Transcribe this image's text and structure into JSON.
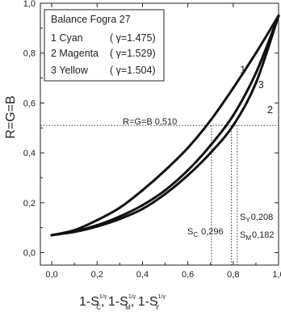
{
  "chart_data": {
    "type": "line",
    "xlabel": "1-S",
    "xlabel_parts": {
      "base": "1-S",
      "exp": "1/γ",
      "sub_c": "C",
      "sub_m": "M",
      "sub_y": "Y",
      "sep": ", "
    },
    "ylabel": "R=G=B",
    "xlim": [
      -0.05,
      1.0
    ],
    "ylim": [
      -0.05,
      1.0
    ],
    "x_ticks": [
      "0,0",
      "0,2",
      "0,4",
      "0,6",
      "0,8",
      "1,0"
    ],
    "y_ticks": [
      "0,0",
      "0,2",
      "0,4",
      "0,6",
      "0,8",
      "1,0"
    ],
    "x_tick_values": [
      0.0,
      0.2,
      0.4,
      0.6,
      0.8,
      1.0
    ],
    "y_tick_values": [
      0.0,
      0.2,
      0.4,
      0.6,
      0.8,
      1.0
    ],
    "legend": {
      "title": "Balance Fogra 27",
      "entries": [
        {
          "label": "1 Cyan",
          "gamma": "( γ=1.475)"
        },
        {
          "label": "2 Magenta",
          "gamma": "( γ=1.529)"
        },
        {
          "label": "3 Yellow",
          "gamma": "( γ=1.504)"
        }
      ],
      "placement": "top-left"
    },
    "series": [
      {
        "curve_label": "1",
        "x": [
          0.0,
          0.1,
          0.2,
          0.3,
          0.4,
          0.5,
          0.6,
          0.7,
          0.8,
          0.9,
          1.0
        ],
        "values": [
          0.07,
          0.09,
          0.13,
          0.18,
          0.25,
          0.33,
          0.42,
          0.53,
          0.66,
          0.8,
          0.95
        ]
      },
      {
        "curve_label": "3",
        "x": [
          0.0,
          0.1,
          0.2,
          0.3,
          0.4,
          0.5,
          0.6,
          0.7,
          0.8,
          0.9,
          1.0
        ],
        "values": [
          0.07,
          0.085,
          0.11,
          0.145,
          0.19,
          0.25,
          0.33,
          0.43,
          0.55,
          0.72,
          0.95
        ]
      },
      {
        "curve_label": "2",
        "x": [
          0.0,
          0.1,
          0.2,
          0.3,
          0.4,
          0.5,
          0.6,
          0.7,
          0.8,
          0.9,
          1.0
        ],
        "values": [
          0.07,
          0.083,
          0.105,
          0.135,
          0.175,
          0.235,
          0.31,
          0.4,
          0.51,
          0.68,
          0.95
        ]
      }
    ],
    "reference_line": {
      "label": "R=G=B 0,510",
      "y": 0.51
    },
    "markers": [
      {
        "id": "C",
        "x": 0.704,
        "value_text": "0,296",
        "sub": "C"
      },
      {
        "id": "Y",
        "x": 0.792,
        "value_text": "0,208",
        "sub": "Y"
      },
      {
        "id": "M",
        "x": 0.818,
        "value_text": "0,182",
        "sub": "M"
      }
    ],
    "grid": false
  }
}
